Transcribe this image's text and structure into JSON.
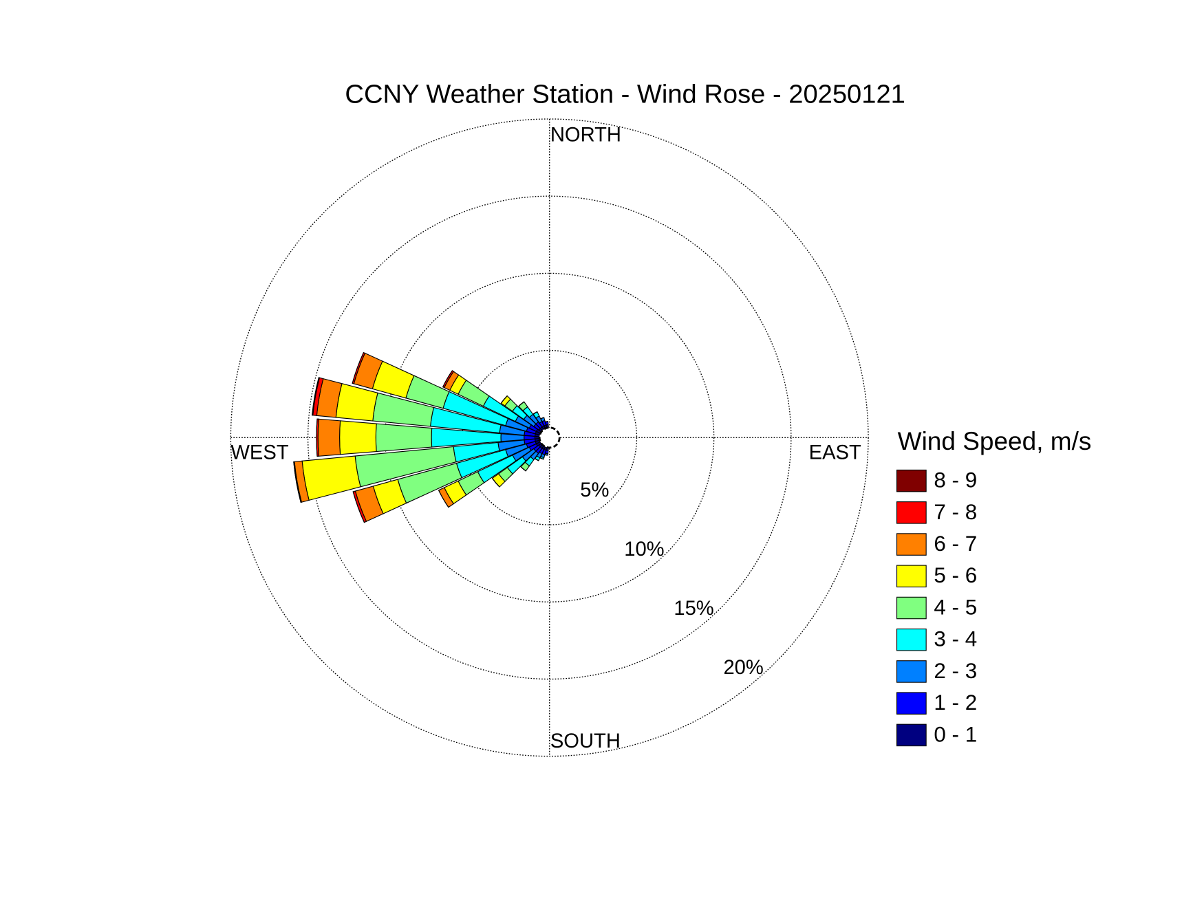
{
  "chart_data": {
    "type": "windrose",
    "title": "CCNY Weather Station - Wind Rose - 20250121",
    "legend_title": "Wind Speed, m/s",
    "direction_labels": {
      "north": "NORTH",
      "east": "EAST",
      "south": "SOUTH",
      "west": "WEST"
    },
    "categories": [
      190,
      200,
      210,
      220,
      230,
      240,
      250,
      260,
      270,
      280,
      290,
      300,
      310,
      320,
      330,
      340,
      350
    ],
    "rlim": [
      0,
      20
    ],
    "rticks": [
      {
        "value": 5,
        "label": "5%"
      },
      {
        "value": 10,
        "label": "10%"
      },
      {
        "value": 15,
        "label": "15%"
      },
      {
        "value": 20,
        "label": "20%"
      }
    ],
    "series": [
      {
        "name": "0 - 1",
        "color": "#000080",
        "values": [
          0.2,
          0.2,
          0.2,
          0.2,
          0.2,
          0.3,
          0.3,
          0.3,
          0.3,
          0.3,
          0.3,
          0.3,
          0.2,
          0.2,
          0.2,
          0.2,
          0.2
        ]
      },
      {
        "name": "1 - 2",
        "color": "#0000ff",
        "values": [
          0.2,
          0.3,
          0.3,
          0.4,
          0.4,
          0.5,
          0.6,
          0.7,
          0.7,
          0.7,
          0.6,
          0.5,
          0.4,
          0.4,
          0.3,
          0.3,
          0.2
        ]
      },
      {
        "name": "2 - 3",
        "color": "#0080ff",
        "values": [
          0.1,
          0.2,
          0.3,
          0.5,
          0.9,
          1.2,
          1.4,
          1.7,
          1.5,
          1.6,
          1.4,
          1.0,
          0.8,
          0.6,
          0.4,
          0.2,
          0
        ]
      },
      {
        "name": "3 - 4",
        "color": "#00ffff",
        "values": [
          0,
          0.1,
          0.2,
          0.5,
          1.2,
          2.5,
          3.3,
          2.9,
          4.5,
          4.5,
          4.2,
          2.3,
          0.9,
          0.6,
          0.3,
          0,
          0
        ]
      },
      {
        "name": "4 - 5",
        "color": "#80ff80",
        "values": [
          0,
          0,
          0,
          0.4,
          0.7,
          1.4,
          3.95,
          6.4,
          3.6,
          3.75,
          2.5,
          1.8,
          0.6,
          0.4,
          0,
          0,
          0
        ]
      },
      {
        "name": "5 - 6",
        "color": "#ffff00",
        "values": [
          0,
          0,
          0,
          0,
          0.5,
          1.0,
          1.65,
          3.45,
          2.35,
          2.4,
          2.25,
          0.6,
          0.3,
          0,
          0,
          0,
          0
        ]
      },
      {
        "name": "6 - 7",
        "color": "#ff8000",
        "values": [
          0,
          0,
          0,
          0,
          0,
          0.4,
          1.2,
          0.5,
          1.4,
          1.25,
          1.25,
          0.4,
          0,
          0,
          0,
          0,
          0
        ]
      },
      {
        "name": "7 - 8",
        "color": "#ff0000",
        "values": [
          0,
          0,
          0,
          0,
          0,
          0,
          0.15,
          0.05,
          0.1,
          0.25,
          0.1,
          0.1,
          0,
          0,
          0,
          0,
          0
        ]
      },
      {
        "name": "8 - 9",
        "color": "#800000",
        "values": [
          0,
          0,
          0,
          0,
          0,
          0,
          0,
          0,
          0,
          0.05,
          0,
          0,
          0,
          0,
          0,
          0,
          0
        ]
      }
    ]
  }
}
